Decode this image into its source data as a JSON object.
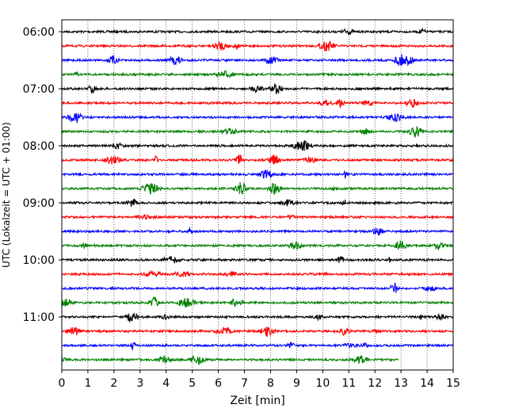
{
  "chart_data": {
    "type": "line",
    "title": "",
    "xlabel": "Zeit  [min]",
    "ylabel": "UTC (Lokalzeit = UTC + 01:00)",
    "xlim": [
      0,
      15
    ],
    "x_ticks": [
      0,
      1,
      2,
      3,
      4,
      5,
      6,
      7,
      8,
      9,
      10,
      11,
      12,
      13,
      14,
      15
    ],
    "x_grid": "vertical dotted lines at each minute",
    "y_ticks": [
      {
        "label": "06:00",
        "row": 0
      },
      {
        "label": "07:00",
        "row": 4
      },
      {
        "label": "08:00",
        "row": 8
      },
      {
        "label": "09:00",
        "row": 12
      },
      {
        "label": "10:00",
        "row": 16
      },
      {
        "label": "11:00",
        "row": 20
      }
    ],
    "row_interval_min": 15,
    "row_color_cycle": [
      "#000000",
      "#ff0000",
      "#0000ff",
      "#008000"
    ],
    "series": [
      {
        "start": "06:00",
        "end_min": 15
      },
      {
        "start": "06:15",
        "end_min": 15
      },
      {
        "start": "06:30",
        "end_min": 15
      },
      {
        "start": "06:45",
        "end_min": 15
      },
      {
        "start": "07:00",
        "end_min": 15
      },
      {
        "start": "07:15",
        "end_min": 15
      },
      {
        "start": "07:30",
        "end_min": 15
      },
      {
        "start": "07:45",
        "end_min": 15
      },
      {
        "start": "08:00",
        "end_min": 15
      },
      {
        "start": "08:15",
        "end_min": 15
      },
      {
        "start": "08:30",
        "end_min": 15
      },
      {
        "start": "08:45",
        "end_min": 15
      },
      {
        "start": "09:00",
        "end_min": 15
      },
      {
        "start": "09:15",
        "end_min": 15
      },
      {
        "start": "09:30",
        "end_min": 15
      },
      {
        "start": "09:45",
        "end_min": 15
      },
      {
        "start": "10:00",
        "end_min": 15
      },
      {
        "start": "10:15",
        "end_min": 15
      },
      {
        "start": "10:30",
        "end_min": 15
      },
      {
        "start": "10:45",
        "end_min": 15
      },
      {
        "start": "11:00",
        "end_min": 15
      },
      {
        "start": "11:15",
        "end_min": 15
      },
      {
        "start": "11:30",
        "end_min": 15
      },
      {
        "start": "11:45",
        "end_min": 12.9
      }
    ]
  }
}
